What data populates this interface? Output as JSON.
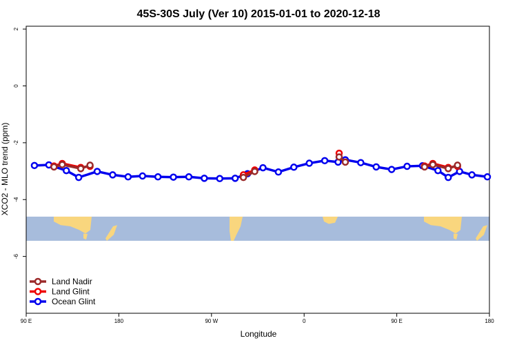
{
  "chart_data": {
    "type": "line",
    "title": "45S-30S July (Ver 10)   2015-01-01 to 2020-12-18",
    "xlabel": "Longitude",
    "ylabel": "XCO2 - MLO trend (ppm)",
    "xlim": [
      90,
      540
    ],
    "ylim": [
      -8,
      2.1
    ],
    "x_ticks": [
      {
        "value": 90,
        "label": "90 E"
      },
      {
        "value": 180,
        "label": "180"
      },
      {
        "value": 270,
        "label": "90 W"
      },
      {
        "value": 360,
        "label": "0"
      },
      {
        "value": 450,
        "label": "90 E"
      },
      {
        "value": 540,
        "label": "180"
      }
    ],
    "y_ticks": [
      {
        "value": 2,
        "label": "2"
      },
      {
        "value": 0,
        "label": "0"
      },
      {
        "value": -2,
        "label": "-2"
      },
      {
        "value": -4,
        "label": "-4"
      },
      {
        "value": -6,
        "label": "-6"
      }
    ],
    "legend_position": "bottom-left",
    "map_strip": {
      "y_top": -4.6,
      "y_bottom": -5.45,
      "ocean_color": "#a7bcdc",
      "land_color": "#f9d67e"
    },
    "series": [
      {
        "name": "Ocean Glint",
        "color": "#0000ee",
        "x": [
          98,
          112,
          129,
          141,
          159,
          174,
          189,
          203,
          218,
          233,
          248,
          263,
          278,
          293,
          305,
          320,
          335,
          350,
          365,
          380,
          393,
          400,
          415,
          430,
          445,
          460,
          475,
          490,
          500,
          511,
          523,
          538
        ],
        "y": [
          -2.8,
          -2.78,
          -2.98,
          -3.22,
          -3.01,
          -3.13,
          -3.2,
          -3.17,
          -3.2,
          -3.21,
          -3.2,
          -3.25,
          -3.26,
          -3.25,
          -3.09,
          -2.88,
          -3.03,
          -2.86,
          -2.72,
          -2.63,
          -2.68,
          -2.6,
          -2.7,
          -2.85,
          -2.94,
          -2.83,
          -2.81,
          -2.98,
          -3.22,
          -3.01,
          -3.13,
          -3.2
        ]
      },
      {
        "name": "Land Glint",
        "color": "#ee0000",
        "x": [
          117,
          125,
          143,
          152,
          301,
          312,
          394,
          477,
          485,
          500,
          509
        ],
        "y": [
          -2.82,
          -2.73,
          -2.87,
          -2.83,
          -3.13,
          -2.96,
          -2.37,
          -2.82,
          -2.73,
          -2.87,
          -2.83
        ]
      },
      {
        "name": "Land Nadir",
        "color": "#9b2a2a",
        "x": [
          117,
          125,
          143,
          152,
          301,
          312,
          394,
          400,
          477,
          485,
          500,
          509
        ],
        "y": [
          -2.85,
          -2.77,
          -2.91,
          -2.79,
          -3.22,
          -3.01,
          -2.5,
          -2.68,
          -2.85,
          -2.77,
          -2.91,
          -2.79
        ]
      }
    ]
  }
}
